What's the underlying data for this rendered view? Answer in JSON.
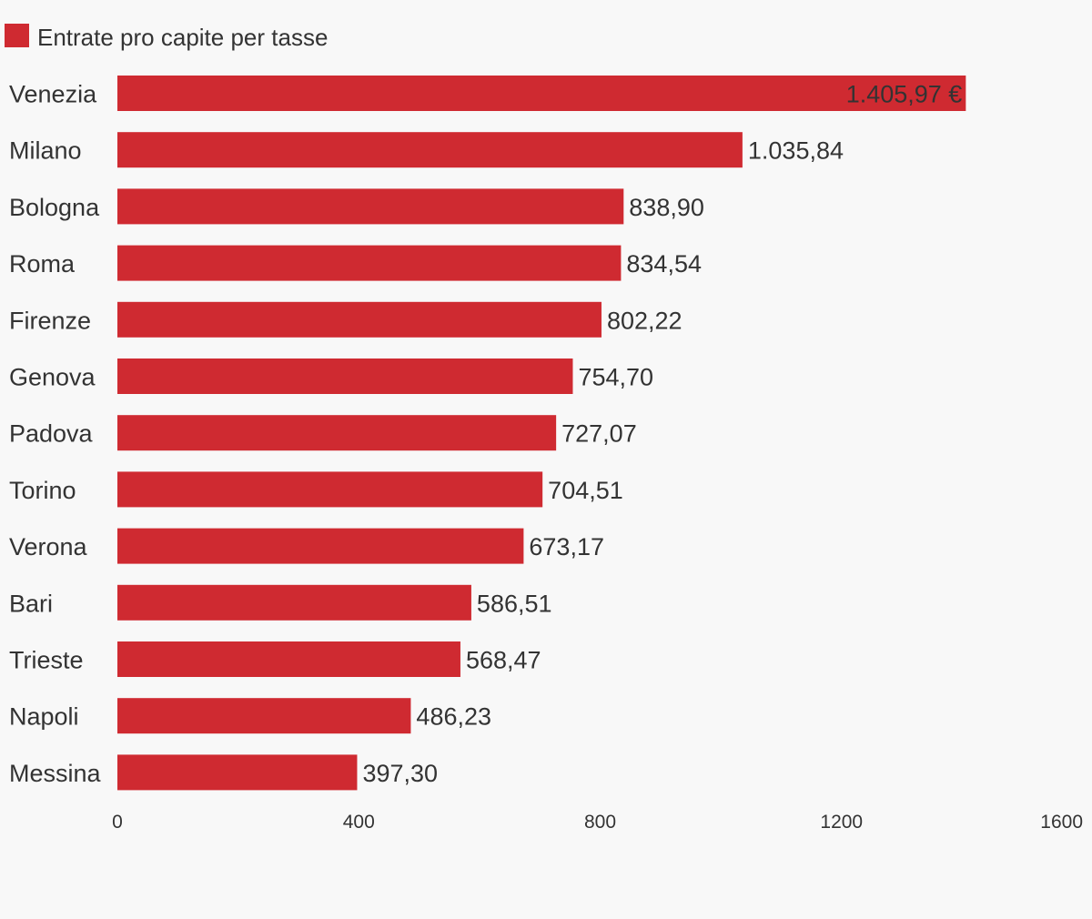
{
  "chart_data": {
    "type": "bar",
    "orientation": "horizontal",
    "legend": {
      "position": "top-left",
      "entries": [
        "Entrate pro capite per tasse"
      ]
    },
    "series": [
      {
        "name": "Entrate pro capite per tasse",
        "color": "#cf2a31",
        "values": [
          1405.97,
          1035.84,
          838.9,
          834.54,
          802.22,
          754.7,
          727.07,
          704.51,
          673.17,
          586.51,
          568.47,
          486.23,
          397.3
        ]
      }
    ],
    "categories": [
      "Venezia",
      "Milano",
      "Bologna",
      "Roma",
      "Firenze",
      "Genova",
      "Padova",
      "Torino",
      "Verona",
      "Bari",
      "Trieste",
      "Napoli",
      "Messina"
    ],
    "value_labels": [
      "1.405,97 €",
      "1.035,84",
      "838,90",
      "834,54",
      "802,22",
      "754,70",
      "727,07",
      "704,51",
      "673,17",
      "586,51",
      "568,47",
      "486,23",
      "397,30"
    ],
    "xlim": [
      0,
      1600
    ],
    "x_ticks": [
      0,
      400,
      800,
      1200,
      1600
    ],
    "x_tick_labels": [
      "0",
      "400",
      "800",
      "1200",
      "1600"
    ],
    "grid": false,
    "colors": {
      "bar": "#cf2a31",
      "text": "#333333",
      "background": "#f8f8f8"
    }
  }
}
